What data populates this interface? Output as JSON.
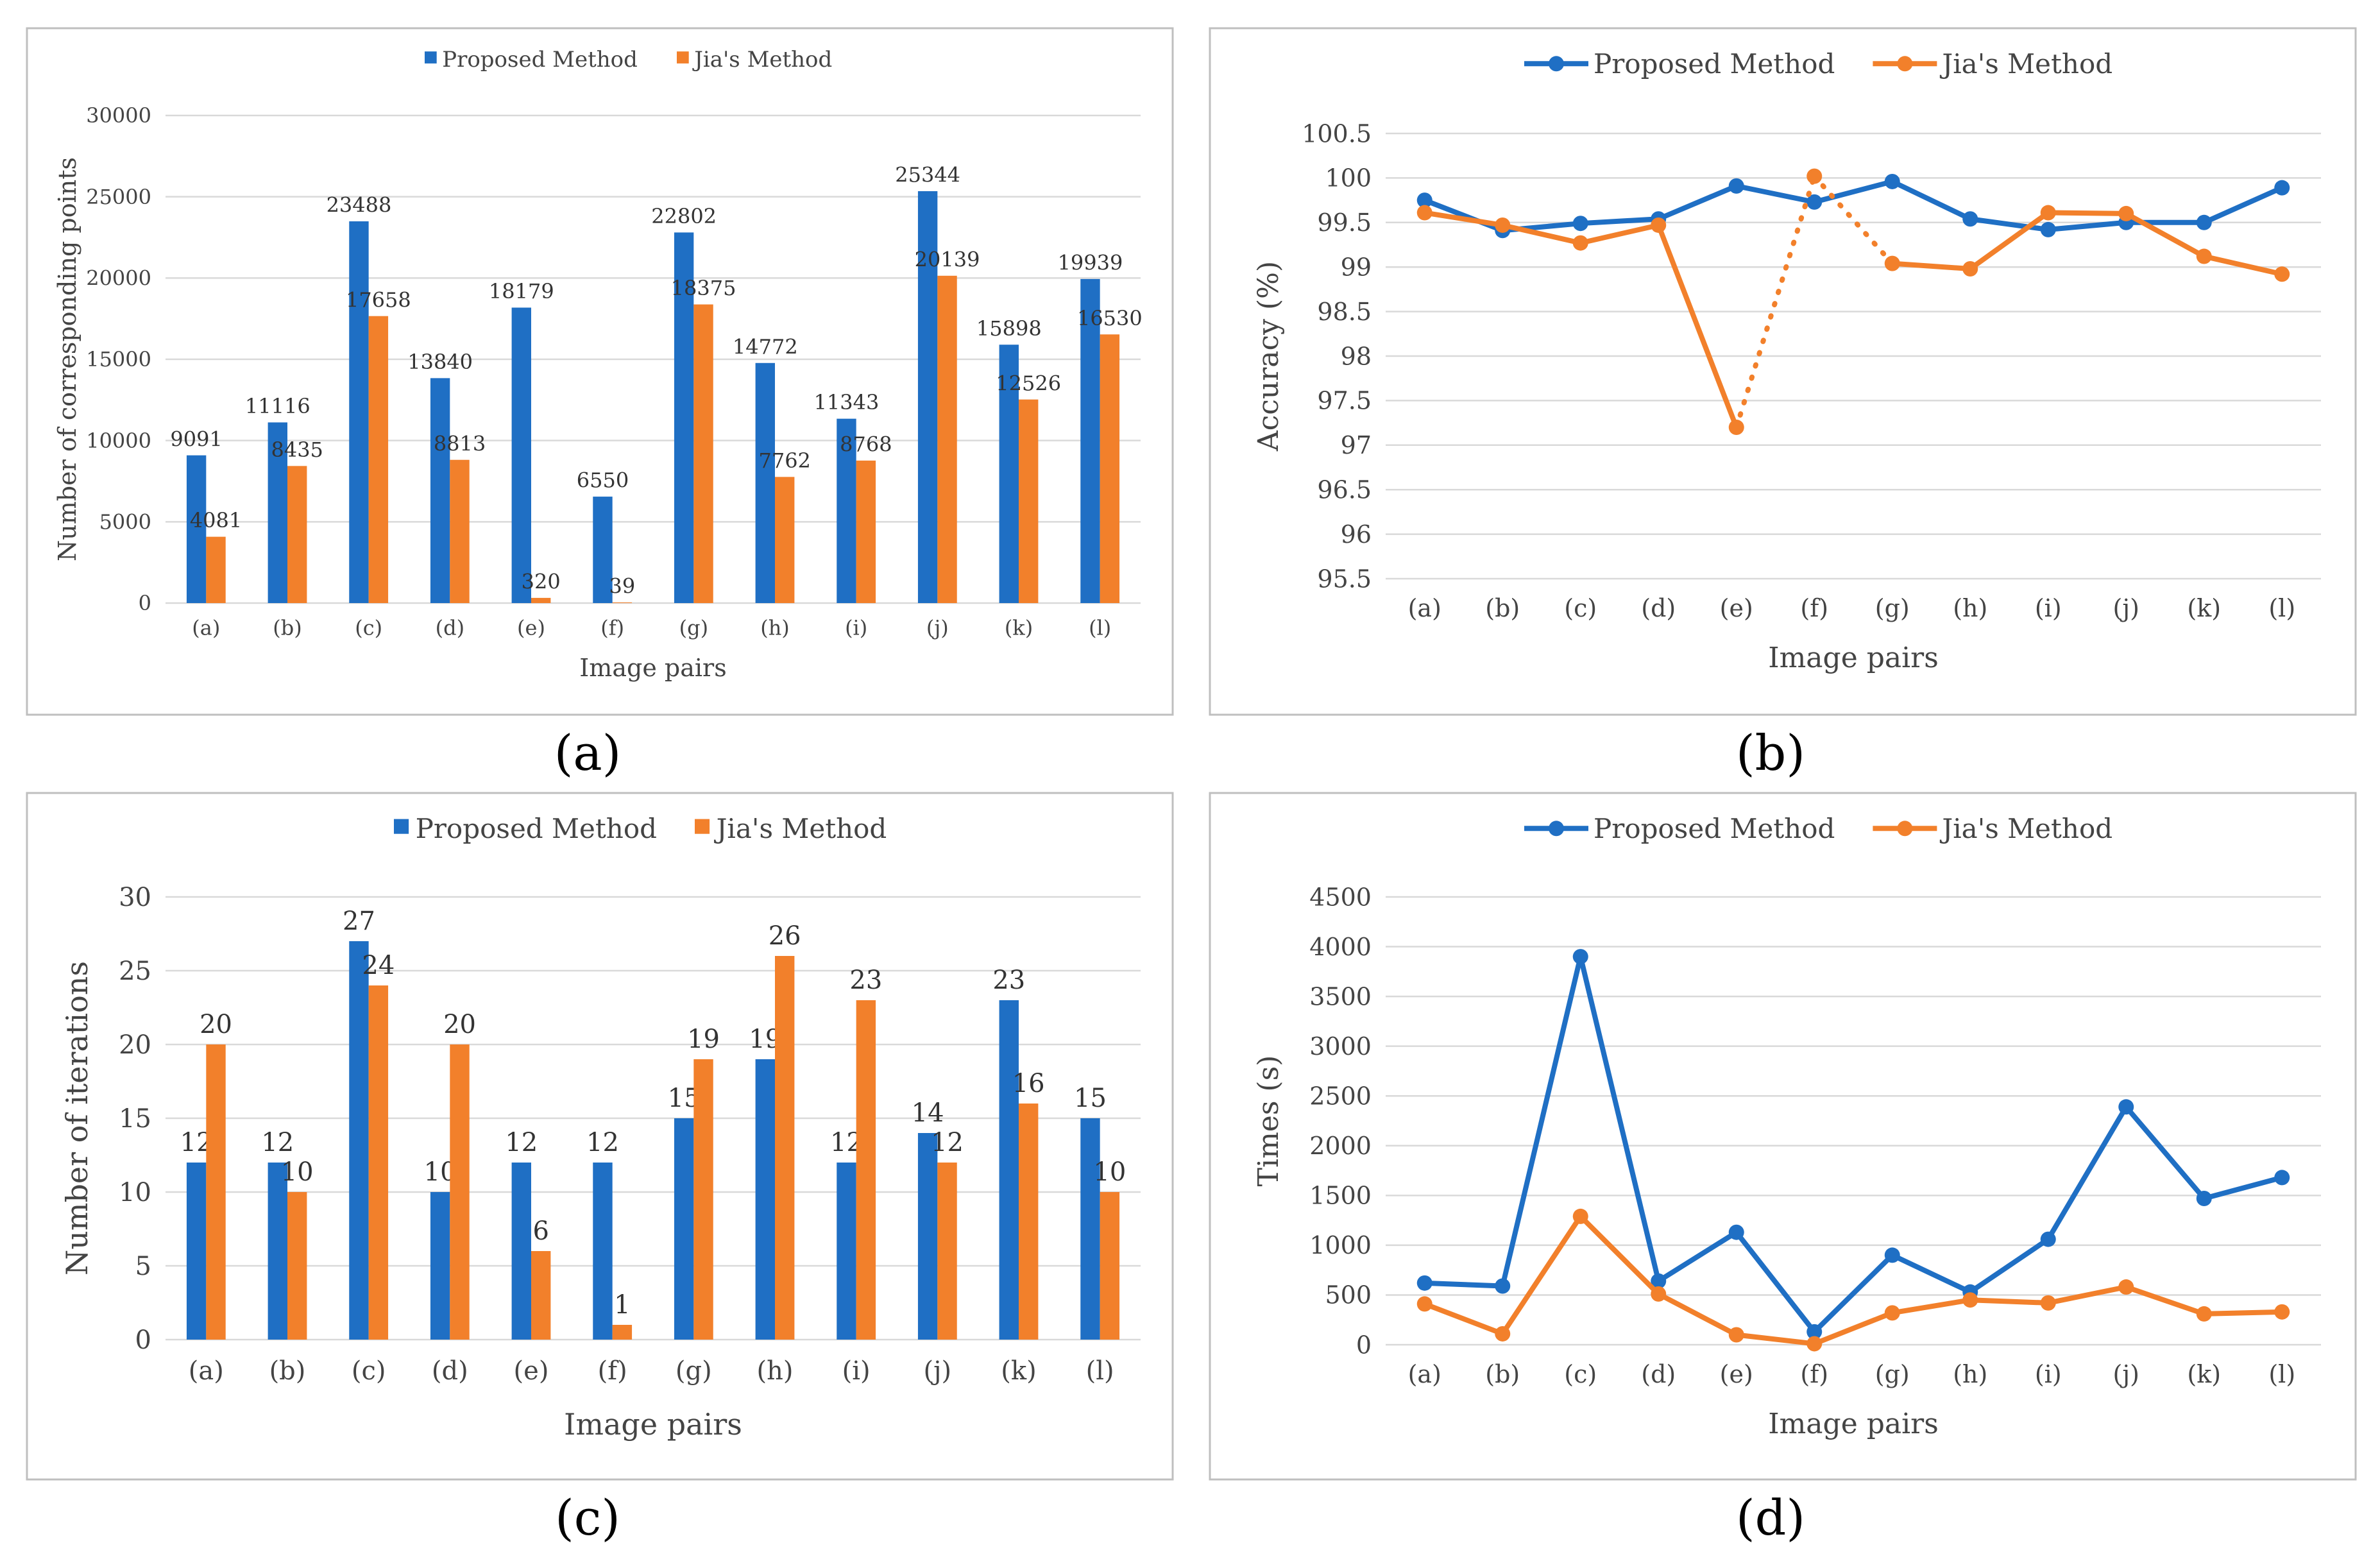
{
  "figure_labels": [
    "(a)",
    "(b)",
    "(c)",
    "(d)"
  ],
  "colors": {
    "proposed": "#1f6fc4",
    "jia": "#f2802b",
    "grid": "#d9d9d9",
    "frame": "#bfbfbf",
    "text": "#444444"
  },
  "chart_data": [
    {
      "id": "a",
      "type": "bar",
      "title": "",
      "categories": [
        "(a)",
        "(b)",
        "(c)",
        "(d)",
        "(e)",
        "(f)",
        "(g)",
        "(h)",
        "(i)",
        "(j)",
        "(k)",
        "(l)"
      ],
      "series": [
        {
          "name": "Proposed Method",
          "values": [
            9091,
            11116,
            23488,
            13840,
            18179,
            6550,
            22802,
            14772,
            11343,
            25344,
            15898,
            19939
          ]
        },
        {
          "name": "Jia's Method",
          "values": [
            4081,
            8435,
            17658,
            8813,
            320,
            39,
            18375,
            7762,
            8768,
            20139,
            12526,
            16530
          ]
        }
      ],
      "xlabel": "Image pairs",
      "ylabel": "Number of corresponding points",
      "ylim": [
        0,
        30000
      ],
      "yticks": [
        0,
        5000,
        10000,
        15000,
        20000,
        25000,
        30000
      ],
      "legend": "top-center"
    },
    {
      "id": "b",
      "type": "line",
      "title": "",
      "categories": [
        "(a)",
        "(b)",
        "(c)",
        "(d)",
        "(e)",
        "(f)",
        "(g)",
        "(h)",
        "(i)",
        "(j)",
        "(k)",
        "(l)"
      ],
      "series": [
        {
          "name": "Proposed Method",
          "values": [
            99.75,
            99.41,
            99.49,
            99.54,
            99.91,
            99.73,
            99.96,
            99.54,
            99.42,
            99.5,
            99.5,
            99.89
          ]
        },
        {
          "name": "Jia's Method",
          "values": [
            99.61,
            99.47,
            99.27,
            99.47,
            97.2,
            100.02,
            99.04,
            98.98,
            99.61,
            99.6,
            99.12,
            98.92
          ],
          "dotted_segments": [
            [
              4,
              5
            ],
            [
              5,
              6
            ]
          ]
        }
      ],
      "xlabel": "Image pairs",
      "ylabel": "Accuracy (%)",
      "ylim": [
        95.5,
        100.5
      ],
      "yticks": [
        95.5,
        96,
        96.5,
        97,
        97.5,
        98,
        98.5,
        99,
        99.5,
        100,
        100.5
      ],
      "legend": "top-center"
    },
    {
      "id": "c",
      "type": "bar",
      "title": "",
      "categories": [
        "(a)",
        "(b)",
        "(c)",
        "(d)",
        "(e)",
        "(f)",
        "(g)",
        "(h)",
        "(i)",
        "(j)",
        "(k)",
        "(l)"
      ],
      "series": [
        {
          "name": "Proposed Method",
          "values": [
            12,
            12,
            27,
            10,
            12,
            12,
            15,
            19,
            12,
            14,
            23,
            15
          ]
        },
        {
          "name": "Jia's Method",
          "values": [
            20,
            10,
            24,
            20,
            6,
            1,
            19,
            26,
            23,
            12,
            16,
            10
          ]
        }
      ],
      "xlabel": "Image pairs",
      "ylabel": "Number of iterations",
      "ylim": [
        0,
        30
      ],
      "yticks": [
        0,
        5,
        10,
        15,
        20,
        25,
        30
      ],
      "legend": "top-center"
    },
    {
      "id": "d",
      "type": "line",
      "title": "",
      "categories": [
        "(a)",
        "(b)",
        "(c)",
        "(d)",
        "(e)",
        "(f)",
        "(g)",
        "(h)",
        "(i)",
        "(j)",
        "(k)",
        "(l)"
      ],
      "series": [
        {
          "name": "Proposed Method",
          "values": [
            620,
            590,
            3900,
            640,
            1130,
            130,
            900,
            530,
            1060,
            2390,
            1470,
            1680
          ]
        },
        {
          "name": "Jia's Method",
          "values": [
            410,
            110,
            1290,
            510,
            100,
            10,
            320,
            450,
            420,
            580,
            310,
            330
          ]
        }
      ],
      "xlabel": "Image pairs",
      "ylabel": "Times (s)",
      "ylim": [
        0,
        4500
      ],
      "yticks": [
        0,
        500,
        1000,
        1500,
        2000,
        2500,
        3000,
        3500,
        4000,
        4500
      ],
      "legend": "top-center"
    }
  ]
}
